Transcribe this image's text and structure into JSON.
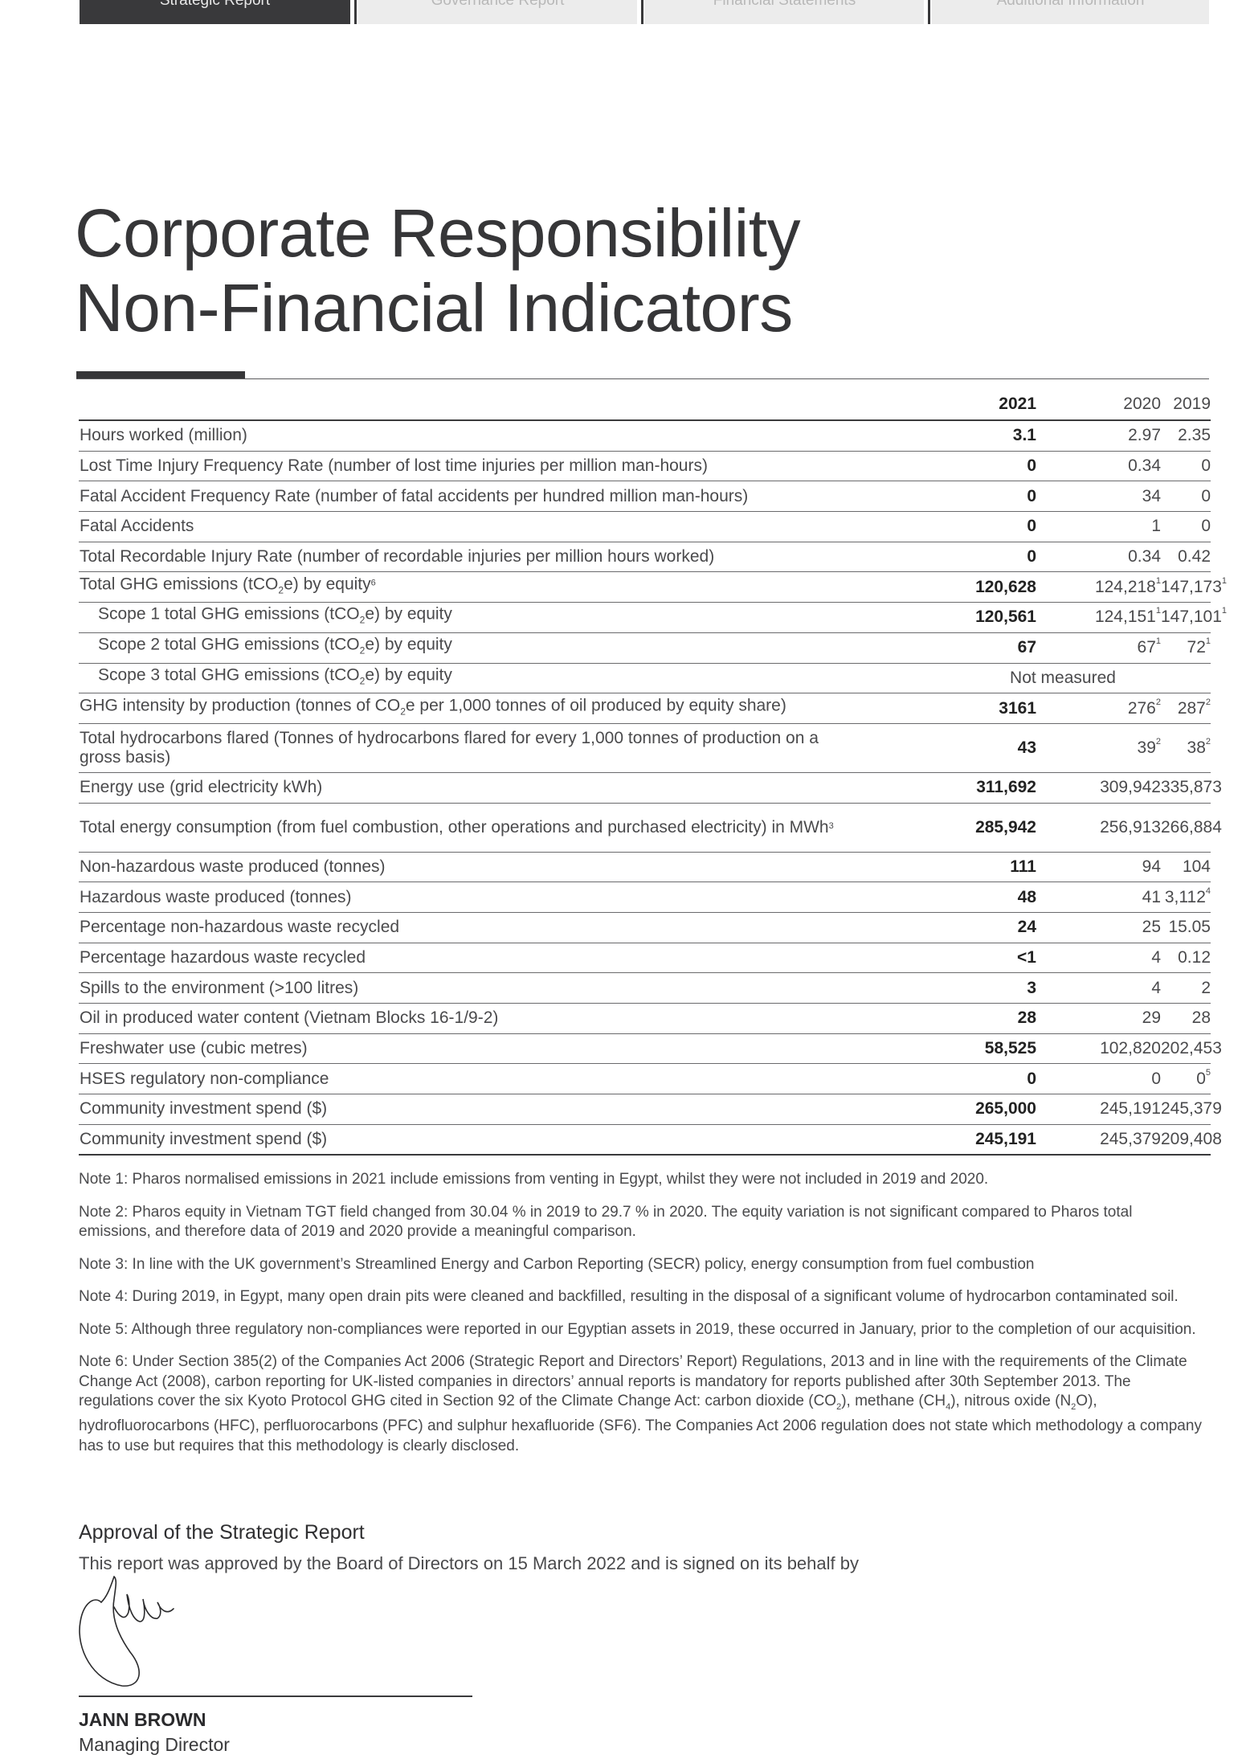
{
  "tabs": [
    {
      "label": "Strategic Report",
      "active": true
    },
    {
      "label": "Governance Report",
      "active": false
    },
    {
      "label": "Financial Statements",
      "active": false
    },
    {
      "label": "Additional Information",
      "active": false
    }
  ],
  "title_line1": "Corporate Responsibility",
  "title_line2": "Non-Financial Indicators",
  "table": {
    "headers": [
      "2021",
      "2020",
      "2019"
    ],
    "rows": [
      {
        "label": "Hours worked (million)",
        "v2021": "3.1",
        "v2020": "2.97",
        "v2019": "2.35"
      },
      {
        "label": "Lost Time Injury Frequency Rate (number of lost time injuries per million man-hours)",
        "v2021": "0",
        "v2020": "0.34",
        "v2019": "0"
      },
      {
        "label": "Fatal Accident Frequency Rate (number of fatal accidents per hundred million man-hours)",
        "v2021": "0",
        "v2020": "34",
        "v2019": "0"
      },
      {
        "label": "Fatal Accidents",
        "v2021": "0",
        "v2020": "1",
        "v2019": "0"
      },
      {
        "label": "Total Recordable Injury Rate (number of recordable injuries per million hours worked)",
        "v2021": "0",
        "v2020": "0.34",
        "v2019": "0.42"
      },
      {
        "label_pre": "Total GHG emissions (tCO",
        "label_sub": "2",
        "label_post": "e) by equity",
        "label_sup": "6",
        "v2021": "120,628",
        "v2020": "124,218",
        "v2020_sup": "1",
        "v2019": "147,173",
        "v2019_sup": "1"
      },
      {
        "label_pre": "Scope 1 total GHG emissions (tCO",
        "label_sub": "2",
        "label_post": "e) by equity",
        "v2021": "120,561",
        "v2020": "124,151",
        "v2020_sup": "1",
        "v2019": "147,101",
        "v2019_sup": "1"
      },
      {
        "label_pre": "Scope 2 total GHG emissions (tCO",
        "label_sub": "2",
        "label_post": "e) by equity",
        "v2021": "67",
        "v2020": "67",
        "v2020_sup": "1",
        "v2019": "72",
        "v2019_sup": "1"
      },
      {
        "label_pre": "Scope 3 total GHG emissions (tCO",
        "label_sub": "2",
        "label_post": "e) by equity",
        "merged": "Not measured"
      },
      {
        "label_pre": "GHG intensity by production (tonnes of CO",
        "label_sub": "2",
        "label_post": "e per 1,000 tonnes of oil produced by equity share)",
        "v2021": "3161",
        "v2020": "276",
        "v2020_sup": "2",
        "v2019": "287",
        "v2019_sup": "2"
      },
      {
        "label": "Total hydrocarbons flared (Tonnes of hydrocarbons flared for every 1,000 tonnes of production on a gross basis)",
        "v2021": "43",
        "v2020": "39",
        "v2020_sup": "2",
        "v2019": "38",
        "v2019_sup": "2"
      },
      {
        "label": "Energy use (grid electricity kWh)",
        "v2021": "311,692",
        "v2020": "309,942",
        "v2019": "335,873"
      },
      {
        "label": "Total energy consumption (from fuel combustion, other operations and purchased electricity) in MWh",
        "label_sup": "3",
        "v2021": "285,942",
        "v2020": "256,913",
        "v2019": "266,884"
      },
      {
        "label": "Non-hazardous waste produced (tonnes)",
        "v2021": "111",
        "v2020": "94",
        "v2019": "104"
      },
      {
        "label": "Hazardous waste produced (tonnes)",
        "v2021": "48",
        "v2020": "41",
        "v2019": "3,112",
        "v2019_sup": "4"
      },
      {
        "label": "Percentage non-hazardous waste recycled",
        "v2021": "24",
        "v2020": "25",
        "v2019": "15.05"
      },
      {
        "label": "Percentage hazardous waste recycled",
        "v2021": "<1",
        "v2020": "4",
        "v2019": "0.12"
      },
      {
        "label": "Spills to the environment  (>100 litres)",
        "v2021": "3",
        "v2020": "4",
        "v2019": "2"
      },
      {
        "label": "Oil in produced water content (Vietnam Blocks 16-1/9-2)",
        "v2021": "28",
        "v2020": "29",
        "v2019": "28"
      },
      {
        "label": "Freshwater use (cubic metres)",
        "v2021": "58,525",
        "v2020": "102,820",
        "v2019": "202,453"
      },
      {
        "label": "HSES regulatory non-compliance",
        "v2021": "0",
        "v2020": "0",
        "v2019": "0",
        "v2019_sup": "5"
      },
      {
        "label": "Community investment spend ($)",
        "v2021": "265,000",
        "v2020": "245,191",
        "v2019": "245,379"
      },
      {
        "label": "Community investment spend ($)",
        "v2021": "245,191",
        "v2020": "245,379",
        "v2019": "209,408"
      }
    ]
  },
  "notes": [
    {
      "text": "Note 1: Pharos normalised emissions in 2021 include emissions from venting in Egypt, whilst they were not included in 2019 and 2020."
    },
    {
      "text": "Note 2: Pharos equity in Vietnam TGT field changed from 30.04 % in 2019 to 29.7 % in 2020. The equity variation is not significant compared to Pharos total emissions, and therefore data of 2019 and 2020 provide a meaningful comparison."
    },
    {
      "text": "Note 3: In line with the UK government’s Streamlined Energy and Carbon Reporting (SECR) policy, energy consumption from fuel combustion"
    },
    {
      "text": "Note 4: During 2019, in Egypt, many open drain pits were cleaned and backfilled, resulting in the disposal of a significant volume of hydrocarbon contaminated soil."
    },
    {
      "text": "Note 5: Although three regulatory non-compliances were reported in our Egyptian assets in 2019, these occurred in January, prior to the completion of our acquisition."
    },
    {
      "parts": [
        "Note 6: Under Section 385(2) of the Companies Act 2006 (Strategic Report and Directors’ Report) Regulations, 2013 and in line with the requirements of the Climate Change Act (2008), carbon reporting for UK-listed companies in directors’ annual reports is mandatory for reports published after 30th September 2013. The regulations cover the six Kyoto Protocol GHG cited in Section 92 of the Climate Change Act: carbon dioxide (CO",
        "2",
        "), methane (CH",
        "4",
        "), nitrous oxide (N",
        "2",
        "O), hydrofluorocarbons (HFC), perfluorocarbons (PFC) and sulphur hexafluoride (SF6). The Companies Act 2006 regulation does not state which methodology a company has to use but requires that this methodology is clearly disclosed."
      ]
    }
  ],
  "approval": {
    "heading": "Approval of the Strategic Report",
    "text": "This report was approved by the Board of Directors on 15 March 2022 and is signed on its behalf by",
    "signer_name": "JANN BROWN",
    "signer_role": "Managing Director"
  }
}
